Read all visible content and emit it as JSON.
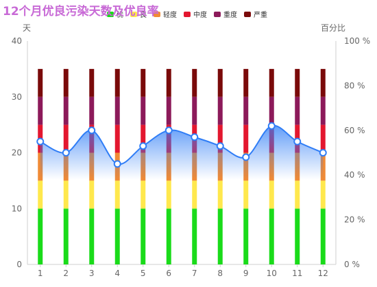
{
  "title": "12个月优良污染天数及优良率",
  "chart_data": {
    "type": "bar",
    "categories": [
      "1",
      "2",
      "3",
      "4",
      "5",
      "6",
      "7",
      "8",
      "9",
      "10",
      "11",
      "12"
    ],
    "series": [
      {
        "name": "优",
        "color": "#1adb1a",
        "values": [
          10,
          10,
          10,
          10,
          10,
          10,
          10,
          10,
          10,
          10,
          10,
          10
        ]
      },
      {
        "name": "良",
        "color": "#ffe84d",
        "values": [
          5,
          5,
          5,
          5,
          5,
          5,
          5,
          5,
          5,
          5,
          5,
          5
        ]
      },
      {
        "name": "轻度",
        "color": "#f08a35",
        "values": [
          5,
          5,
          5,
          5,
          5,
          5,
          5,
          5,
          5,
          5,
          5,
          5
        ]
      },
      {
        "name": "中度",
        "color": "#e3172f",
        "values": [
          5,
          5,
          5,
          5,
          5,
          5,
          5,
          5,
          5,
          5,
          5,
          5
        ]
      },
      {
        "name": "重度",
        "color": "#8c1a5a",
        "values": [
          5,
          5,
          5,
          5,
          5,
          5,
          5,
          5,
          5,
          5,
          5,
          5
        ]
      },
      {
        "name": "严重",
        "color": "#7a0a0a",
        "values": [
          5,
          5,
          5,
          5,
          5,
          5,
          5,
          5,
          5,
          5,
          5,
          5
        ]
      }
    ],
    "line": {
      "values": [
        55,
        50,
        60,
        45,
        53,
        60,
        57,
        53,
        48,
        62,
        55,
        50
      ],
      "color": "#2f7df6"
    },
    "left_axis": {
      "unit": "天",
      "min": 0,
      "max": 40,
      "ticks": [
        0,
        10,
        20,
        30,
        40
      ]
    },
    "right_axis": {
      "unit": "百分比",
      "min": 0,
      "max": 100,
      "ticks": [
        "0 %",
        "20 %",
        "40 %",
        "60 %",
        "80 %",
        "100 %"
      ]
    },
    "legend": "top"
  }
}
